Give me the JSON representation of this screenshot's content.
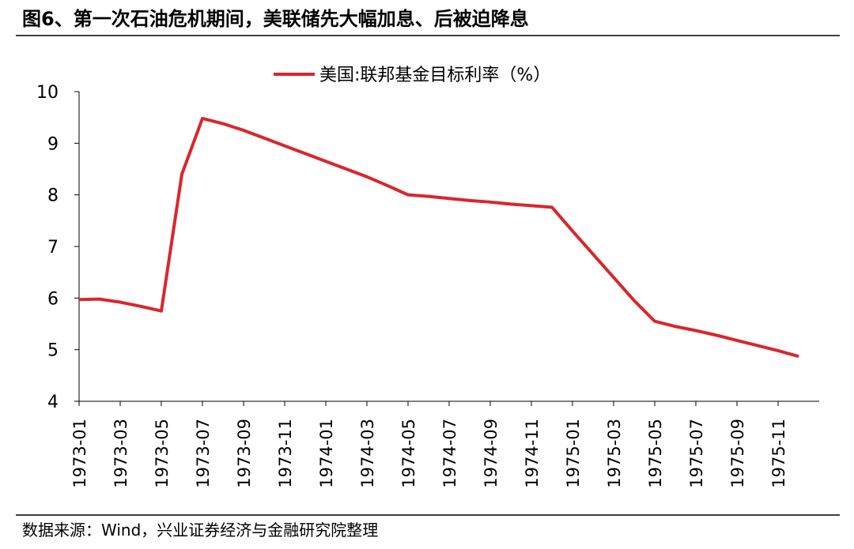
{
  "chart_data": {
    "type": "line",
    "title": "图6、第一次石油危机期间，美联储先大幅加息、后被迫降息",
    "source": "数据来源：Wind，兴业证券经济与金融研究院整理",
    "categories": [
      "1973-01",
      null,
      "1973-03",
      null,
      "1973-05",
      null,
      "1973-07",
      null,
      "1973-09",
      null,
      "1973-11",
      null,
      "1974-01",
      null,
      "1974-03",
      null,
      "1974-05",
      null,
      "1974-07",
      null,
      "1974-09",
      null,
      "1974-11",
      null,
      "1975-01",
      null,
      "1975-03",
      null,
      "1975-05",
      null,
      "1975-07",
      null,
      "1975-09",
      null,
      "1975-11",
      null
    ],
    "series": [
      {
        "name": "美国:联邦基金目标利率（%）",
        "color": "#d9262c",
        "values": [
          5.97,
          5.98,
          5.92,
          5.84,
          5.75,
          8.4,
          9.48,
          9.38,
          9.25,
          9.1,
          8.95,
          8.8,
          8.65,
          8.5,
          8.35,
          8.18,
          8.0,
          7.97,
          7.93,
          7.89,
          7.86,
          7.82,
          7.79,
          7.76,
          7.3,
          6.85,
          6.4,
          5.95,
          5.55,
          5.45,
          5.37,
          5.28,
          5.18,
          5.08,
          4.98,
          4.87
        ]
      }
    ],
    "ylim": [
      4,
      10
    ],
    "yticks": [
      4,
      5,
      6,
      7,
      8,
      9,
      10
    ],
    "grid": false,
    "legend": "top"
  }
}
